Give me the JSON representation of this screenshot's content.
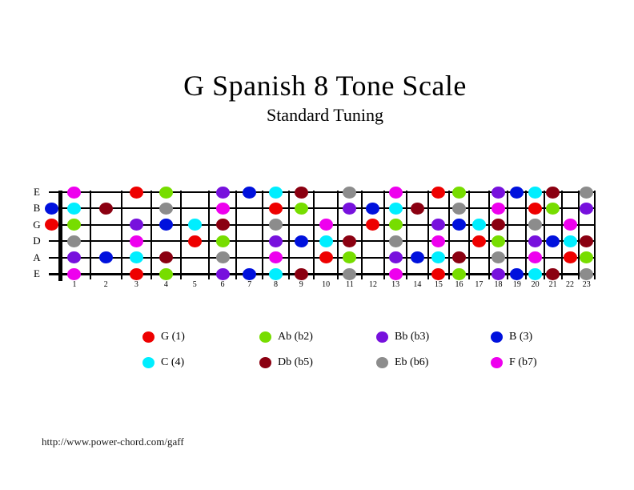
{
  "title": "G Spanish 8 Tone Scale",
  "subtitle": "Standard Tuning",
  "footer": "http://www.power-chord.com/gaff",
  "notes": {
    "G": {
      "legend_label": "G (1)",
      "color": "#ee0000"
    },
    "Ab": {
      "legend_label": "Ab (b2)",
      "color": "#77dd00"
    },
    "Bb": {
      "legend_label": "Bb (b3)",
      "color": "#7711dd"
    },
    "B": {
      "legend_label": "B (3)",
      "color": "#0011dd"
    },
    "C": {
      "legend_label": "C (4)",
      "color": "#00eeff"
    },
    "Db": {
      "legend_label": "Db (b5)",
      "color": "#8b0011"
    },
    "Eb": {
      "legend_label": "Eb (b6)",
      "color": "#8c8c8c"
    },
    "F": {
      "legend_label": "F (b7)",
      "color": "#ee00ee"
    }
  },
  "legend_order": [
    "G",
    "Ab",
    "Bb",
    "B",
    "C",
    "Db",
    "Eb",
    "F"
  ],
  "fretboard": {
    "fret_count": 23,
    "fret_numbers": [
      1,
      2,
      3,
      4,
      5,
      6,
      7,
      8,
      9,
      10,
      11,
      12,
      13,
      14,
      15,
      16,
      17,
      18,
      19,
      20,
      21,
      22,
      23
    ],
    "strings": [
      {
        "label": "E",
        "dots": [
          [
            1,
            "F"
          ],
          [
            3,
            "G"
          ],
          [
            4,
            "Ab"
          ],
          [
            6,
            "Bb"
          ],
          [
            7,
            "B"
          ],
          [
            8,
            "C"
          ],
          [
            9,
            "Db"
          ],
          [
            11,
            "Eb"
          ],
          [
            13,
            "F"
          ],
          [
            15,
            "G"
          ],
          [
            16,
            "Ab"
          ],
          [
            18,
            "Bb"
          ],
          [
            19,
            "B"
          ],
          [
            20,
            "C"
          ],
          [
            21,
            "Db"
          ],
          [
            23,
            "Eb"
          ]
        ]
      },
      {
        "label": "B",
        "dots": [
          [
            0,
            "B"
          ],
          [
            1,
            "C"
          ],
          [
            2,
            "Db"
          ],
          [
            4,
            "Eb"
          ],
          [
            6,
            "F"
          ],
          [
            8,
            "G"
          ],
          [
            9,
            "Ab"
          ],
          [
            11,
            "Bb"
          ],
          [
            12,
            "B"
          ],
          [
            13,
            "C"
          ],
          [
            14,
            "Db"
          ],
          [
            16,
            "Eb"
          ],
          [
            18,
            "F"
          ],
          [
            20,
            "G"
          ],
          [
            21,
            "Ab"
          ],
          [
            23,
            "Bb"
          ]
        ]
      },
      {
        "label": "G",
        "dots": [
          [
            0,
            "G"
          ],
          [
            1,
            "Ab"
          ],
          [
            3,
            "Bb"
          ],
          [
            4,
            "B"
          ],
          [
            5,
            "C"
          ],
          [
            6,
            "Db"
          ],
          [
            8,
            "Eb"
          ],
          [
            10,
            "F"
          ],
          [
            12,
            "G"
          ],
          [
            13,
            "Ab"
          ],
          [
            15,
            "Bb"
          ],
          [
            16,
            "B"
          ],
          [
            17,
            "C"
          ],
          [
            18,
            "Db"
          ],
          [
            20,
            "Eb"
          ],
          [
            22,
            "F"
          ]
        ]
      },
      {
        "label": "D",
        "dots": [
          [
            1,
            "Eb"
          ],
          [
            3,
            "F"
          ],
          [
            5,
            "G"
          ],
          [
            6,
            "Ab"
          ],
          [
            8,
            "Bb"
          ],
          [
            9,
            "B"
          ],
          [
            10,
            "C"
          ],
          [
            11,
            "Db"
          ],
          [
            13,
            "Eb"
          ],
          [
            15,
            "F"
          ],
          [
            17,
            "G"
          ],
          [
            18,
            "Ab"
          ],
          [
            20,
            "Bb"
          ],
          [
            21,
            "B"
          ],
          [
            22,
            "C"
          ],
          [
            23,
            "Db"
          ]
        ]
      },
      {
        "label": "A",
        "dots": [
          [
            1,
            "Bb"
          ],
          [
            2,
            "B"
          ],
          [
            3,
            "C"
          ],
          [
            4,
            "Db"
          ],
          [
            6,
            "Eb"
          ],
          [
            8,
            "F"
          ],
          [
            10,
            "G"
          ],
          [
            11,
            "Ab"
          ],
          [
            13,
            "Bb"
          ],
          [
            14,
            "B"
          ],
          [
            15,
            "C"
          ],
          [
            16,
            "Db"
          ],
          [
            18,
            "Eb"
          ],
          [
            20,
            "F"
          ],
          [
            22,
            "G"
          ],
          [
            23,
            "Ab"
          ]
        ]
      },
      {
        "label": "E",
        "dots": [
          [
            1,
            "F"
          ],
          [
            3,
            "G"
          ],
          [
            4,
            "Ab"
          ],
          [
            6,
            "Bb"
          ],
          [
            7,
            "B"
          ],
          [
            8,
            "C"
          ],
          [
            9,
            "Db"
          ],
          [
            11,
            "Eb"
          ],
          [
            13,
            "F"
          ],
          [
            15,
            "G"
          ],
          [
            16,
            "Ab"
          ],
          [
            18,
            "Bb"
          ],
          [
            19,
            "B"
          ],
          [
            20,
            "C"
          ],
          [
            21,
            "Db"
          ],
          [
            23,
            "Eb"
          ]
        ]
      }
    ]
  }
}
